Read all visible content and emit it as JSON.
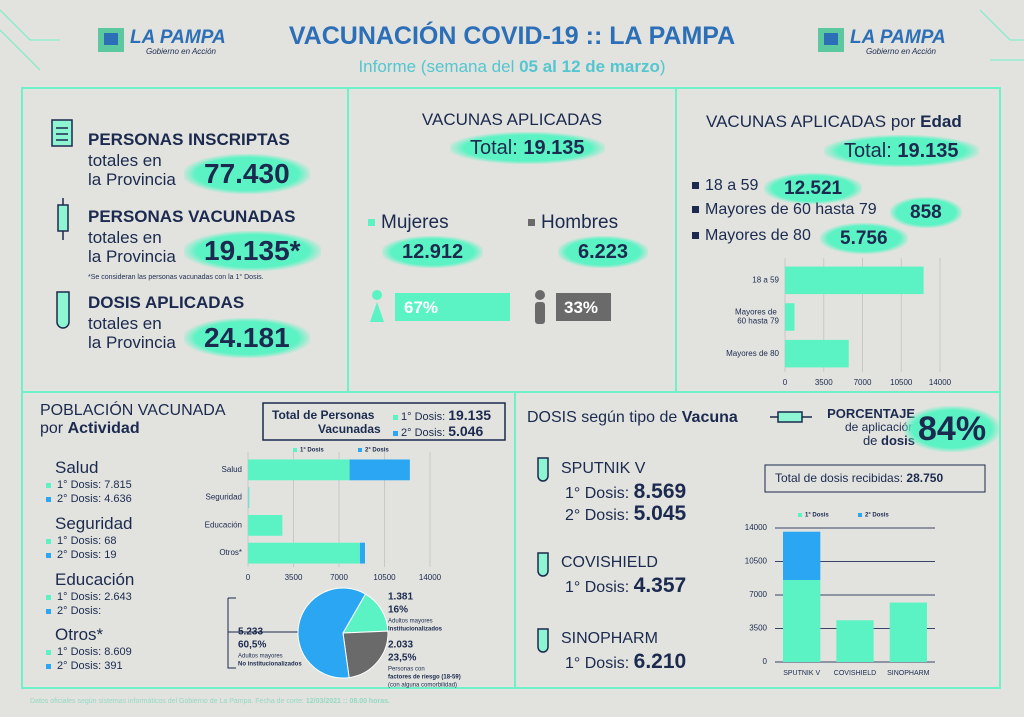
{
  "header": {
    "title": "VACUNACIÓN COVID-19 :: LA PAMPA",
    "subtitle": "Informe (semana del",
    "subtitle_dates": "05 al 12 de marzo",
    "subtitle_end": ")",
    "logo_name": "LA PAMPA",
    "logo_tagline": "Gobierno en Acción"
  },
  "dose_labels": [
    "1° Dosis:",
    "2° Dosis:"
  ],
  "summary": {
    "line1": "totales en",
    "line2": "la Provincia",
    "items": [
      {
        "title": "PERSONAS INSCRIPTAS",
        "value": "77.430"
      },
      {
        "title": "PERSONAS VACUNADAS",
        "value": "19.135*",
        "note": "*Se consideran las personas vacunadas con la 1° Dosis."
      },
      {
        "title": "DOSIS APLICADAS",
        "value": "24.181"
      }
    ]
  },
  "vacunas": {
    "title": "VACUNAS APLICADAS",
    "total_label": "Total:",
    "total": "19.135",
    "groups": [
      {
        "name": "Mujeres",
        "value": "12.912",
        "share": "67%"
      },
      {
        "name": "Hombres",
        "value": "6.223",
        "share": "33%"
      }
    ]
  },
  "edad": {
    "title": "VACUNAS APLICADAS por",
    "title_bold": "Edad",
    "total_label": "Total:",
    "total": "19.135",
    "items": [
      {
        "name": "18 a 59",
        "value": "12.521"
      },
      {
        "name": "Mayores de 60 hasta 79",
        "value": "858"
      },
      {
        "name": "Mayores de 80",
        "value": "5.756"
      }
    ]
  },
  "actividad": {
    "title": "POBLACIÓN VACUNADA",
    "title2": "por",
    "title2_bold": "Actividad",
    "total_title": "Total de Personas",
    "total_title2": "Vacunadas",
    "totals": [
      "19.135",
      "5.046"
    ],
    "items": [
      {
        "name": "Salud",
        "doses": [
          "7.815",
          "4.636"
        ]
      },
      {
        "name": "Seguridad",
        "doses": [
          "68",
          "19"
        ]
      },
      {
        "name": "Educación",
        "doses": [
          "2.643",
          null
        ]
      },
      {
        "name": "Otros*",
        "doses": [
          "8.609",
          "391"
        ]
      }
    ]
  },
  "tipo": {
    "title": "DOSIS según tipo de",
    "title_bold": "Vacuna",
    "pct_title": "PORCENTAJE",
    "pct_line2": "de aplicación",
    "pct_line3": "de",
    "pct_line3_bold": "dosis",
    "pct_value": "84%",
    "received_label": "Total de dosis recibidas:",
    "received": "28.750",
    "vaccines": [
      {
        "name": "SPUTNIK V",
        "doses": [
          "8.569",
          "5.045"
        ]
      },
      {
        "name": "COVISHIELD",
        "doses": [
          "4.357"
        ]
      },
      {
        "name": "SINOPHARM",
        "doses": [
          "6.210"
        ]
      }
    ]
  },
  "footer": {
    "text": "Datos oficiales según sistemas informáticos del Gobierno de La Pampa. Fecha de corte:",
    "date": "12/03/2021 :: 08.00 horas."
  },
  "chart_data": [
    {
      "type": "bar",
      "orientation": "horizontal",
      "categories": [
        "18 a 59",
        "Mayores de 60 hasta 79",
        "Mayores de 80"
      ],
      "values": [
        12521,
        858,
        5756
      ],
      "color": "#5cf3c4",
      "xlim": [
        0,
        14000
      ],
      "xticks": [
        0,
        3500,
        7000,
        10500,
        14000
      ],
      "grid": true
    },
    {
      "type": "bar",
      "orientation": "horizontal",
      "stacked": true,
      "categories": [
        "Salud",
        "Seguridad",
        "Educación",
        "Otros*"
      ],
      "series": [
        {
          "name": "1° Dosis",
          "color": "#5cf3c4",
          "values": [
            7815,
            68,
            2643,
            8609
          ]
        },
        {
          "name": "2° Dosis",
          "color": "#2aa6f2",
          "values": [
            4636,
            19,
            null,
            391
          ]
        }
      ],
      "xlim": [
        0,
        14000
      ],
      "xticks": [
        0,
        3500,
        7000,
        10500,
        14000
      ],
      "grid": true,
      "legend": "top"
    },
    {
      "type": "pie",
      "values": [
        16,
        23.5,
        60.5
      ],
      "value_labels": [
        "16%",
        "23,5%",
        "60,5%"
      ],
      "counts": [
        "1.381",
        "2.033",
        "5.233"
      ],
      "labels": [
        [
          "Adultos mayores",
          "Institucionalizados"
        ],
        [
          "Personas con",
          "factores de riesgo (18-59)",
          "(con alguna comorbilidad)"
        ],
        [
          "Adultos mayores",
          "No institucionalizados"
        ]
      ],
      "colors": [
        "#5cf3c4",
        "#6a6a6a",
        "#2aa6f2"
      ]
    },
    {
      "type": "bar",
      "orientation": "vertical",
      "stacked": true,
      "categories": [
        "SPUTNIK V",
        "COVISHIELD",
        "SINOPHARM"
      ],
      "series": [
        {
          "name": "1° Dosis",
          "color": "#5cf3c4",
          "values": [
            8569,
            4357,
            6210
          ]
        },
        {
          "name": "2° Dosis",
          "color": "#2aa6f2",
          "values": [
            5045,
            null,
            null
          ]
        }
      ],
      "ylim": [
        0,
        14000
      ],
      "yticks": [
        0,
        3500,
        7000,
        10500,
        14000
      ],
      "grid": true,
      "legend": "top"
    }
  ]
}
